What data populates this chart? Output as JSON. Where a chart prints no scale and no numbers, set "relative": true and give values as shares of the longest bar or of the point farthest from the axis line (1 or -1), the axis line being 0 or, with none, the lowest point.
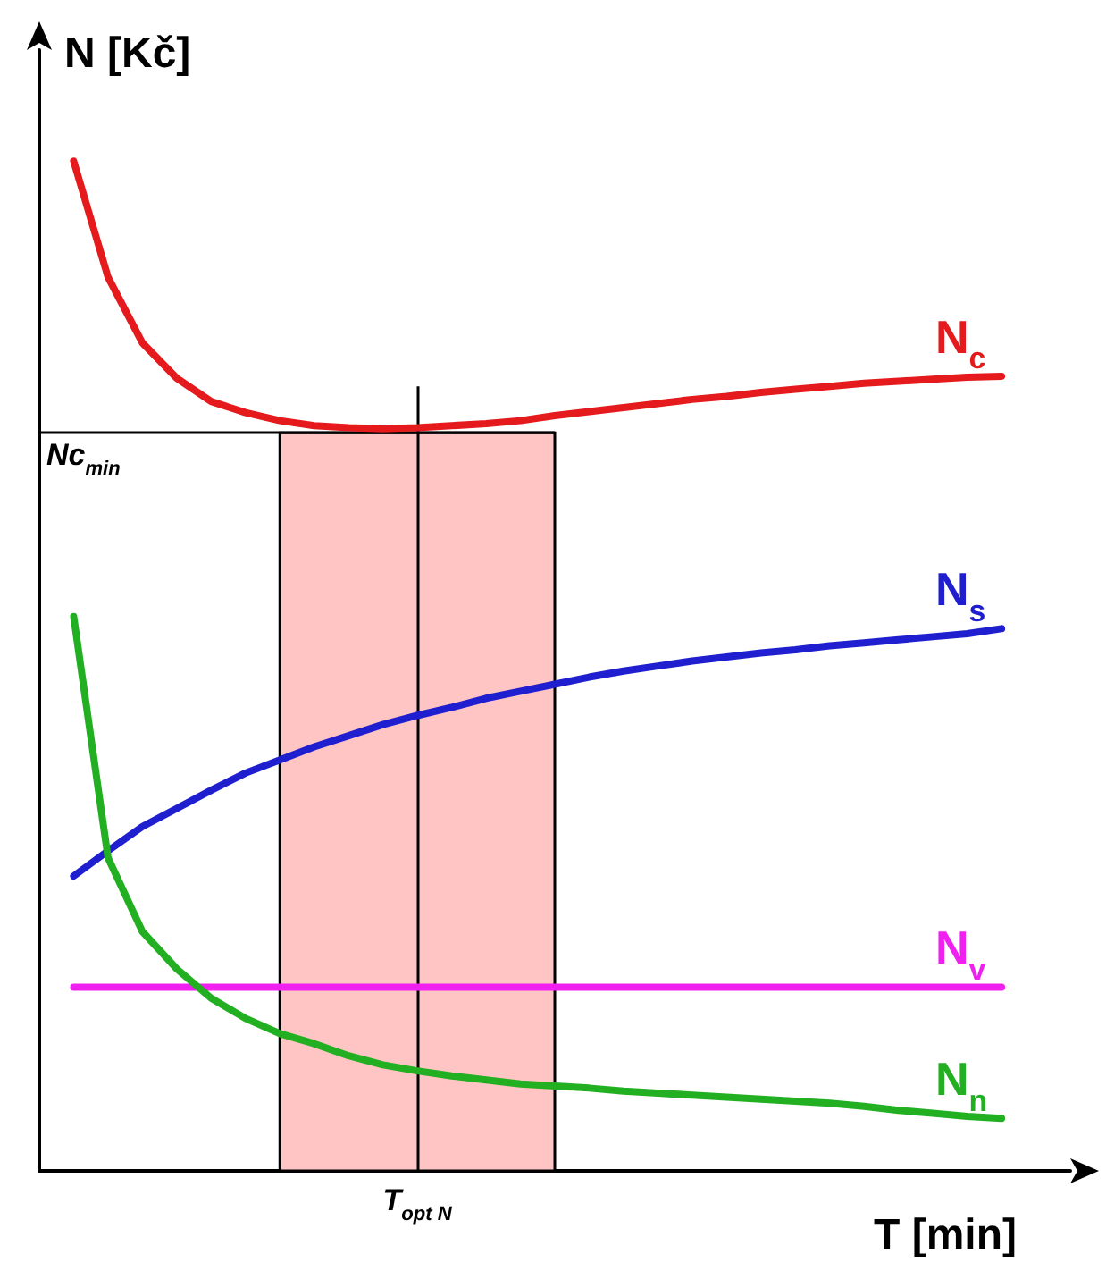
{
  "chart_data": {
    "type": "line",
    "relative": true,
    "xlabel": "T [min]",
    "ylabel": "N [Kč]",
    "annotations": [
      "T$_{opt N}$"
    ],
    "categories": [
      null,
      null,
      null,
      null,
      null,
      null,
      null,
      null,
      null,
      null,
      null,
      null,
      null,
      null,
      null,
      null,
      null,
      null,
      null,
      null,
      null,
      null,
      null,
      null,
      null,
      null,
      null,
      null,
      null,
      null,
      null
    ],
    "series": [
      {
        "name": "N$_{c}$",
        "color": "#e41a1c",
        "values": [
          null,
          1.0,
          0.885,
          0.82,
          0.785,
          0.762,
          0.751,
          0.743,
          0.738,
          0.736,
          0.735,
          0.736,
          0.738,
          0.74,
          0.743,
          0.748,
          0.752,
          0.756,
          0.76,
          0.764,
          0.767,
          0.771,
          0.774,
          0.777,
          0.78,
          0.782,
          0.784,
          0.786,
          0.787,
          null,
          null
        ]
      },
      {
        "name": "N$_{s}$",
        "color": "#1f1fd0",
        "values": [
          null,
          0.292,
          0.317,
          0.341,
          0.359,
          0.377,
          0.394,
          0.407,
          0.42,
          0.431,
          0.442,
          0.451,
          0.459,
          0.468,
          0.475,
          0.482,
          0.489,
          0.495,
          0.5,
          0.505,
          0.509,
          0.513,
          0.516,
          0.52,
          0.523,
          0.526,
          0.529,
          0.532,
          0.537,
          null,
          null
        ]
      },
      {
        "name": "N$_{v}$",
        "color": "#f020f0",
        "values": [
          null,
          0.182,
          0.182,
          0.182,
          0.182,
          0.182,
          0.182,
          0.182,
          0.182,
          0.182,
          0.182,
          0.182,
          0.182,
          0.182,
          0.182,
          0.182,
          0.182,
          0.182,
          0.182,
          0.182,
          0.182,
          0.182,
          0.182,
          0.182,
          0.182,
          0.182,
          0.182,
          0.182,
          0.182,
          null,
          null
        ]
      },
      {
        "name": "N$_{n}$",
        "color": "#22b022",
        "values": [
          null,
          0.549,
          0.31,
          0.237,
          0.2,
          0.171,
          0.151,
          0.136,
          0.126,
          0.114,
          0.105,
          0.099,
          0.094,
          0.09,
          0.086,
          0.084,
          0.082,
          0.079,
          0.077,
          0.075,
          0.073,
          0.071,
          0.069,
          0.067,
          0.064,
          0.06,
          0.057,
          0.054,
          0.052,
          null,
          null
        ]
      }
    ],
    "ref_lines": [
      {
        "axis": "y",
        "value": 0.731,
        "label": "Nc$_{min}$",
        "color": "#000000"
      }
    ]
  }
}
